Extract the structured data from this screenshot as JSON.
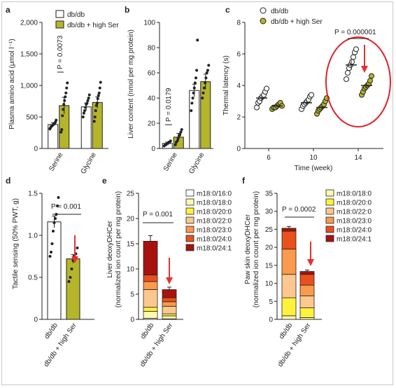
{
  "colors": {
    "white": "#ffffff",
    "olive": "#b5b52a",
    "circle_red": "#e0232b",
    "arrow_red": "#e53030"
  },
  "chart_data": [
    {
      "panel": "a",
      "type": "bar",
      "legend": [
        "db/db",
        "db/db + high Ser"
      ],
      "categories": [
        "Serine",
        "Glycine"
      ],
      "ylabel": "Plasma amino acid (μmol l⁻¹)",
      "yticks": [
        "0",
        "500",
        "1,000",
        "1,500",
        "2,000"
      ],
      "ylim": [
        0,
        2000
      ],
      "series": [
        {
          "name": "db/db",
          "values": [
            380,
            660
          ],
          "errors": [
            30,
            60
          ],
          "points": [
            [
              310,
              330,
              350,
              360,
              370,
              380,
              390,
              400,
              420,
              450
            ],
            [
              500,
              560,
              600,
              650,
              700,
              720,
              760,
              800,
              850
            ]
          ]
        },
        {
          "name": "db/db + high Ser",
          "values": [
            680,
            730
          ],
          "errors": [
            130,
            90
          ],
          "points": [
            [
              260,
              300,
              520,
              620,
              700,
              760,
              820,
              880,
              960,
              1040
            ],
            [
              430,
              500,
              600,
              680,
              720,
              790,
              840,
              880,
              960,
              1050
            ]
          ]
        }
      ],
      "annotations": [
        "P = 0.0073"
      ]
    },
    {
      "panel": "b",
      "type": "bar",
      "categories": [
        "Serine",
        "Glycine"
      ],
      "ylabel": "Liver content (nmol per mg protein)",
      "yticks": [
        "0",
        "20",
        "40",
        "60",
        "80",
        "100"
      ],
      "ylim": [
        0,
        100
      ],
      "series": [
        {
          "name": "db/db",
          "values": [
            4,
            46
          ],
          "errors": [
            1,
            5
          ],
          "points": [
            [
              2,
              3,
              3,
              4,
              4,
              5,
              5,
              6
            ],
            [
              30,
              36,
              40,
              44,
              48,
              52,
              56,
              62,
              86
            ]
          ]
        },
        {
          "name": "db/db + high Ser",
          "values": [
            9,
            53
          ],
          "errors": [
            3,
            6
          ],
          "points": [
            [
              3,
              5,
              6,
              8,
              10,
              11,
              13,
              15
            ],
            [
              40,
              44,
              48,
              52,
              56,
              60,
              62,
              66
            ]
          ]
        }
      ],
      "annotations": [
        "P = 0.0179"
      ]
    },
    {
      "panel": "c",
      "type": "scatter",
      "legend": [
        "db/db",
        "db/db + high Ser"
      ],
      "x": [
        6,
        10,
        14
      ],
      "xlabel": "Time (week)",
      "ylabel": "Thermal latency (s)",
      "yticks": [
        "0",
        "2",
        "4",
        "6",
        "8"
      ],
      "ylim": [
        0,
        8
      ],
      "series": [
        {
          "name": "db/db",
          "means": [
            3.2,
            2.9,
            5.3
          ],
          "errors": [
            0.2,
            0.2,
            0.3
          ],
          "points": [
            [
              2.6,
              2.9,
              3.0,
              3.2,
              3.3,
              3.4,
              3.6,
              3.8
            ],
            [
              2.5,
              2.7,
              2.8,
              2.9,
              3.0,
              3.1,
              3.3,
              3.4
            ],
            [
              4.4,
              4.8,
              5.1,
              5.3,
              5.5,
              5.8,
              6.1,
              6.3
            ]
          ]
        },
        {
          "name": "db/db + high Ser",
          "means": [
            2.7,
            2.6,
            4.0
          ],
          "errors": [
            0.1,
            0.15,
            0.15
          ],
          "points": [
            [
              2.5,
              2.6,
              2.6,
              2.7,
              2.8,
              2.9,
              2.7
            ],
            [
              2.2,
              2.4,
              2.5,
              2.6,
              2.7,
              2.8,
              3.0,
              3.2
            ],
            [
              3.4,
              3.6,
              3.8,
              3.9,
              4.0,
              4.1,
              4.3,
              4.6
            ]
          ]
        }
      ],
      "annotations": [
        "P = 0.000001"
      ]
    },
    {
      "panel": "d",
      "type": "bar",
      "categories": [
        "db/db",
        "db/db + high Ser"
      ],
      "ylabel": "Tactile sensing (50% PWT, g)",
      "yticks": [
        "0",
        "0.5",
        "1.0",
        "1.5"
      ],
      "ylim": [
        0,
        1.5
      ],
      "values": [
        1.16,
        0.72
      ],
      "errors": [
        0.07,
        0.05
      ],
      "points": [
        [
          0.75,
          0.8,
          0.9,
          1.05,
          1.15,
          1.2,
          1.25,
          1.35,
          1.45
        ],
        [
          0.45,
          0.5,
          0.6,
          0.7,
          0.75,
          0.78,
          0.85
        ]
      ],
      "annotations": [
        "P = 0.001"
      ]
    },
    {
      "panel": "e",
      "type": "bar",
      "stacked": true,
      "categories": [
        "db/db",
        "db/db + high Ser"
      ],
      "ylabel": "Liver deoxyDHCer",
      "ylabel2": "(normalized ion count per mg protein)",
      "yticks": [
        "0",
        "5",
        "10",
        "15",
        "20",
        "25"
      ],
      "ylim": [
        0,
        25
      ],
      "legend": [
        "m18:0/16:0",
        "m18:0/18:0",
        "m18:0/20:0",
        "m18:0/22:0",
        "m18:0/23:0",
        "m18:0/24:0",
        "m18:0/24:1"
      ],
      "stack_colors": [
        "#ffffff",
        "#fff9b0",
        "#fff23d",
        "#fcc890",
        "#f99a4c",
        "#e8501e",
        "#a8120e"
      ],
      "series": [
        {
          "name": "m18:0/16:0",
          "values": [
            0.2,
            0.1
          ]
        },
        {
          "name": "m18:0/18:0",
          "values": [
            1.4,
            0.6
          ]
        },
        {
          "name": "m18:0/20:0",
          "values": [
            0.8,
            0.4
          ]
        },
        {
          "name": "m18:0/22:0",
          "values": [
            3.5,
            1.5
          ]
        },
        {
          "name": "m18:0/23:0",
          "values": [
            1.6,
            0.9
          ]
        },
        {
          "name": "m18:0/24:0",
          "values": [
            1.3,
            0.8
          ]
        },
        {
          "name": "m18:0/24:1",
          "values": [
            6.7,
            1.6
          ]
        }
      ],
      "totals_error": [
        1.1,
        0.5
      ],
      "annotations": [
        "P = 0.001"
      ]
    },
    {
      "panel": "f",
      "type": "bar",
      "stacked": true,
      "categories": [
        "db/db",
        "db/db + high Ser"
      ],
      "ylabel": "Paw skin deoxyDHCer",
      "ylabel2": "(normalized ion count per mg protein)",
      "yticks": [
        "0",
        "5",
        "10",
        "15",
        "20",
        "25",
        "30",
        "35"
      ],
      "ylim": [
        0,
        35
      ],
      "legend": [
        "m18:0/18:0",
        "m18:0/20:0",
        "m18:0/22:0",
        "m18:0/23:0",
        "m18:0/24:0",
        "m18:0/24:1"
      ],
      "stack_colors": [
        "#fff9b0",
        "#fff23d",
        "#fcc890",
        "#f99a4c",
        "#e8501e",
        "#a8120e"
      ],
      "series": [
        {
          "name": "m18:0/18:0",
          "values": [
            1.0,
            0.5
          ]
        },
        {
          "name": "m18:0/20:0",
          "values": [
            5.0,
            2.7
          ]
        },
        {
          "name": "m18:0/22:0",
          "values": [
            6.5,
            3.3
          ]
        },
        {
          "name": "m18:0/23:0",
          "values": [
            7.0,
            3.0
          ]
        },
        {
          "name": "m18:0/24:0",
          "values": [
            5.0,
            3.0
          ]
        },
        {
          "name": "m18:0/24:1",
          "values": [
            0.8,
            0.8
          ]
        }
      ],
      "totals_error": [
        0.5,
        0.4
      ],
      "annotations": [
        "P = 0.0002"
      ]
    }
  ]
}
